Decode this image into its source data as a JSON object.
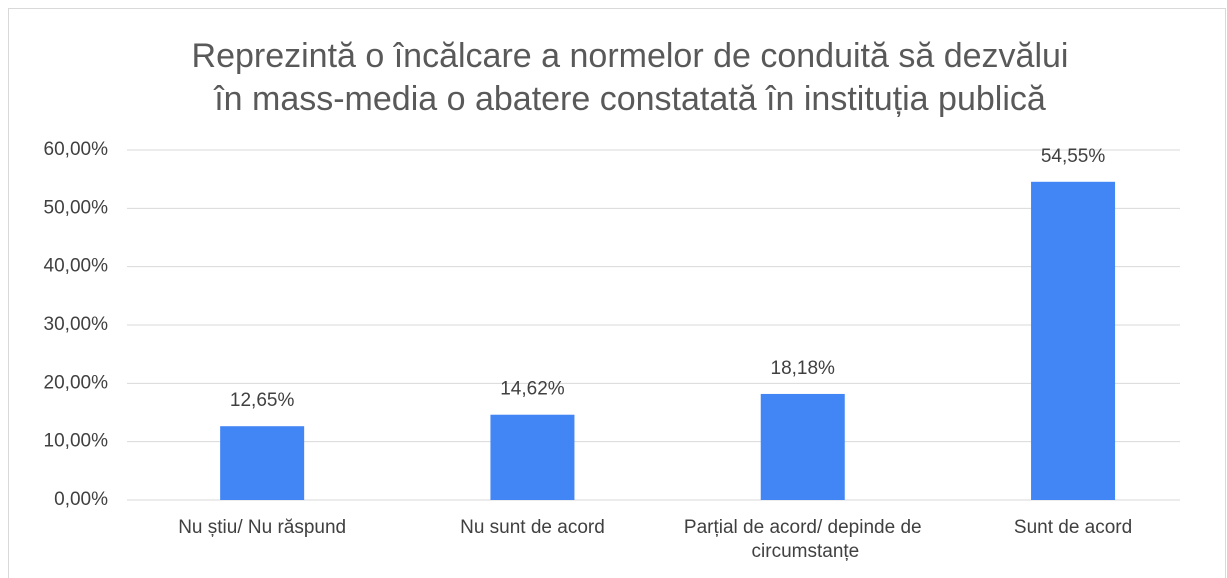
{
  "chart_data": {
    "type": "bar",
    "title": [
      "Reprezintă o încălcare a normelor de conduită să dezvălui",
      "în mass-media o abatere constatată în instituția publică"
    ],
    "categories": [
      "Nu știu/ Nu răspund",
      "Nu sunt de acord",
      "Parțial de acord/ depinde de circumstanțe",
      "Sunt de acord"
    ],
    "values": [
      12.65,
      14.62,
      18.18,
      54.55
    ],
    "value_labels": [
      "12,65%",
      "14,62%",
      "18,18%",
      "54,55%"
    ],
    "color": "#4285f4",
    "ylim": [
      0,
      60
    ],
    "yticks": [
      {
        "value": 0,
        "label": "0,00%"
      },
      {
        "value": 10,
        "label": "10,00%"
      },
      {
        "value": 20,
        "label": "20,00%"
      },
      {
        "value": 30,
        "label": "30,00%"
      },
      {
        "value": 40,
        "label": "40,00%"
      },
      {
        "value": 50,
        "label": "50,00%"
      },
      {
        "value": 60,
        "label": "60,00%"
      }
    ],
    "grid": true
  }
}
